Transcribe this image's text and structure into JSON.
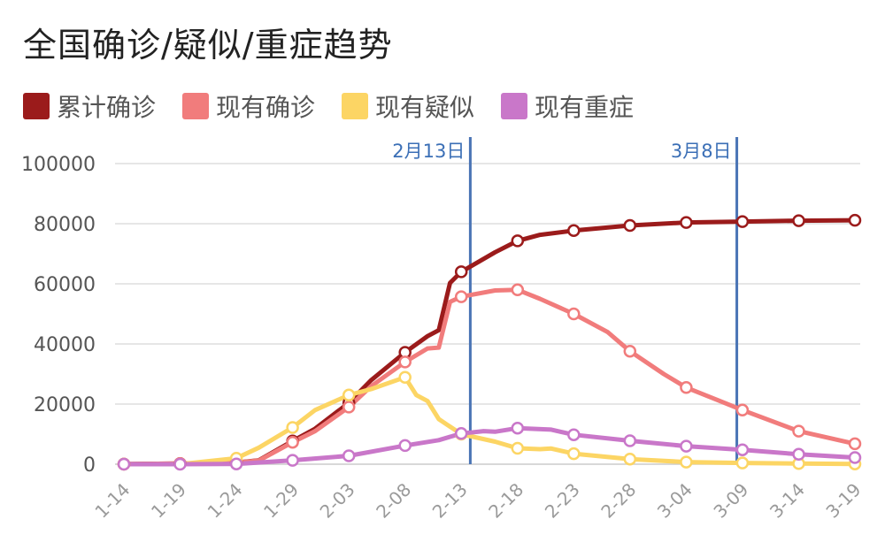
{
  "chart_data": {
    "type": "line",
    "title": "全国确诊/疑似/重症趋势",
    "ylim": [
      0,
      100000
    ],
    "y_ticks": [
      "0",
      "20000",
      "40000",
      "60000",
      "80000",
      "100000"
    ],
    "x_ticks": [
      "1-14",
      "1-19",
      "1-24",
      "1-29",
      "2-03",
      "2-08",
      "2-13",
      "2-18",
      "2-23",
      "2-28",
      "3-04",
      "3-09",
      "3-14",
      "3-19"
    ],
    "legend_position": "top-left",
    "grid": true,
    "annotations": [
      {
        "label": "2月13日",
        "x_day": 30.8
      },
      {
        "label": "3月8日",
        "x_day": 54.5
      }
    ],
    "series": [
      {
        "name": "累计确诊",
        "color": "#9b1b1b",
        "points": [
          [
            0,
            41
          ],
          [
            5,
            198
          ],
          [
            10,
            571
          ],
          [
            12,
            1300
          ],
          [
            15,
            7700
          ],
          [
            17,
            11800
          ],
          [
            20,
            20400
          ],
          [
            22,
            28000
          ],
          [
            25,
            37200
          ],
          [
            27,
            42600
          ],
          [
            28,
            44600
          ],
          [
            29,
            60300
          ],
          [
            30,
            64000
          ],
          [
            33,
            70500
          ],
          [
            35,
            74300
          ],
          [
            37,
            76300
          ],
          [
            40,
            77700
          ],
          [
            45,
            79400
          ],
          [
            50,
            80400
          ],
          [
            55,
            80700
          ],
          [
            60,
            81000
          ],
          [
            65,
            81150
          ]
        ],
        "markers": [
          [
            0,
            41
          ],
          [
            5,
            198
          ],
          [
            10,
            571
          ],
          [
            15,
            7700
          ],
          [
            20,
            20400
          ],
          [
            25,
            37200
          ],
          [
            30,
            64000
          ],
          [
            35,
            74300
          ],
          [
            40,
            77700
          ],
          [
            45,
            79400
          ],
          [
            50,
            80400
          ],
          [
            55,
            80700
          ],
          [
            60,
            81000
          ],
          [
            65,
            81150
          ]
        ]
      },
      {
        "name": "现有确诊",
        "color": "#f17c7c",
        "points": [
          [
            0,
            41
          ],
          [
            5,
            200
          ],
          [
            10,
            540
          ],
          [
            12,
            1200
          ],
          [
            15,
            7300
          ],
          [
            17,
            11000
          ],
          [
            20,
            19000
          ],
          [
            22,
            26000
          ],
          [
            25,
            34000
          ],
          [
            27,
            38500
          ],
          [
            28,
            38800
          ],
          [
            29,
            54000
          ],
          [
            30,
            55700
          ],
          [
            33,
            57800
          ],
          [
            35,
            58000
          ],
          [
            37,
            55000
          ],
          [
            40,
            50000
          ],
          [
            43,
            44000
          ],
          [
            45,
            37600
          ],
          [
            48,
            30000
          ],
          [
            50,
            25500
          ],
          [
            53,
            21000
          ],
          [
            55,
            18000
          ],
          [
            60,
            11000
          ],
          [
            65,
            6800
          ]
        ],
        "markers": [
          [
            0,
            41
          ],
          [
            5,
            200
          ],
          [
            10,
            540
          ],
          [
            15,
            7300
          ],
          [
            20,
            19000
          ],
          [
            25,
            34000
          ],
          [
            30,
            55700
          ],
          [
            35,
            58000
          ],
          [
            40,
            50000
          ],
          [
            45,
            37600
          ],
          [
            50,
            25500
          ],
          [
            55,
            18000
          ],
          [
            60,
            11000
          ],
          [
            65,
            6800
          ]
        ]
      },
      {
        "name": "现有疑似",
        "color": "#fcd564",
        "points": [
          [
            0,
            0
          ],
          [
            5,
            0
          ],
          [
            10,
            2000
          ],
          [
            12,
            5500
          ],
          [
            15,
            12200
          ],
          [
            17,
            18000
          ],
          [
            20,
            23000
          ],
          [
            22,
            25000
          ],
          [
            25,
            28900
          ],
          [
            26,
            23000
          ],
          [
            27,
            21000
          ],
          [
            28,
            15000
          ],
          [
            30,
            10000
          ],
          [
            33,
            7500
          ],
          [
            35,
            5300
          ],
          [
            37,
            5000
          ],
          [
            38,
            5200
          ],
          [
            40,
            3500
          ],
          [
            45,
            1700
          ],
          [
            50,
            700
          ],
          [
            55,
            400
          ],
          [
            60,
            200
          ],
          [
            65,
            100
          ]
        ],
        "markers": [
          [
            0,
            0
          ],
          [
            10,
            2000
          ],
          [
            15,
            12200
          ],
          [
            20,
            23000
          ],
          [
            25,
            28900
          ],
          [
            30,
            10000
          ],
          [
            35,
            5300
          ],
          [
            40,
            3500
          ],
          [
            45,
            1700
          ],
          [
            50,
            700
          ],
          [
            55,
            400
          ],
          [
            60,
            200
          ],
          [
            65,
            100
          ]
        ]
      },
      {
        "name": "现有重症",
        "color": "#c977c9",
        "points": [
          [
            0,
            0
          ],
          [
            5,
            0
          ],
          [
            10,
            100
          ],
          [
            15,
            1300
          ],
          [
            20,
            2800
          ],
          [
            25,
            6200
          ],
          [
            28,
            8000
          ],
          [
            30,
            10200
          ],
          [
            32,
            11000
          ],
          [
            33,
            10800
          ],
          [
            35,
            12000
          ],
          [
            38,
            11500
          ],
          [
            40,
            9800
          ],
          [
            45,
            7800
          ],
          [
            50,
            6000
          ],
          [
            55,
            4800
          ],
          [
            60,
            3300
          ],
          [
            65,
            2200
          ]
        ],
        "markers": [
          [
            0,
            0
          ],
          [
            5,
            0
          ],
          [
            10,
            100
          ],
          [
            15,
            1300
          ],
          [
            20,
            2800
          ],
          [
            25,
            6200
          ],
          [
            30,
            10200
          ],
          [
            35,
            12000
          ],
          [
            40,
            9800
          ],
          [
            45,
            7800
          ],
          [
            50,
            6000
          ],
          [
            55,
            4800
          ],
          [
            60,
            3300
          ],
          [
            65,
            2200
          ]
        ]
      }
    ]
  }
}
